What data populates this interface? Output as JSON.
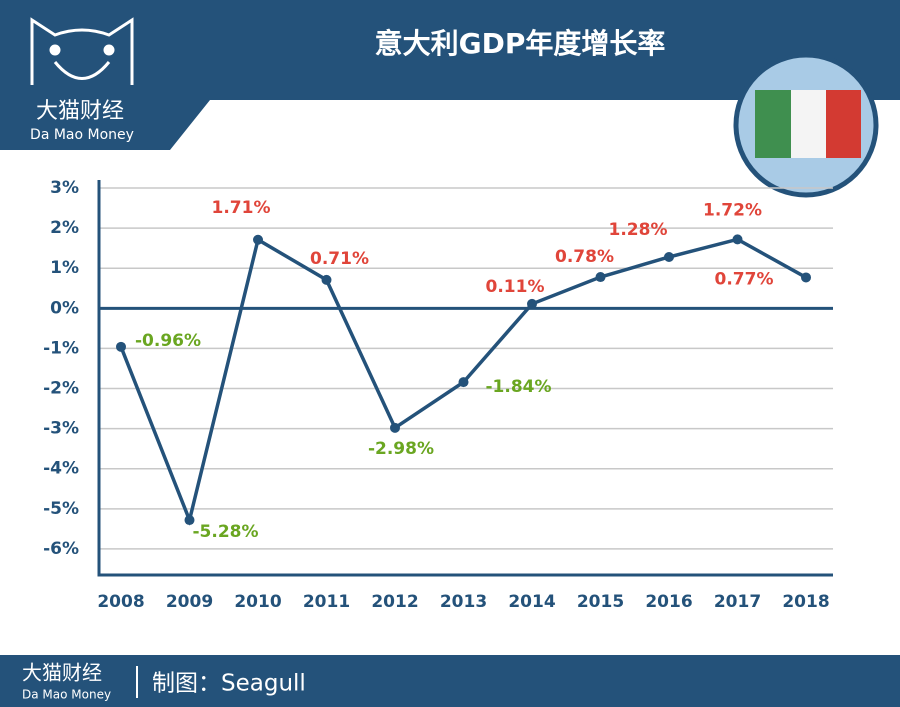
{
  "brand": {
    "name": "大猫财经",
    "name_en": "Da Mao Money"
  },
  "footer": {
    "credit": "制图：Seagull"
  },
  "chart_data": {
    "type": "line",
    "title": "意大利GDP年度增长率",
    "categories": [
      "2008",
      "2009",
      "2010",
      "2011",
      "2012",
      "2013",
      "2014",
      "2015",
      "2016",
      "2017",
      "2018"
    ],
    "values": [
      -0.96,
      -5.28,
      1.71,
      0.71,
      -2.98,
      -1.84,
      0.11,
      0.78,
      1.28,
      1.72,
      0.77
    ],
    "value_labels": [
      "-0.96%",
      "-5.28%",
      "1.71%",
      "0.71%",
      "-2.98%",
      "-1.84%",
      "0.11%",
      "0.78%",
      "1.28%",
      "1.72%",
      "0.77%"
    ],
    "color": "#24527a",
    "label_colors": {
      "positive": "#e0453a",
      "negative": "#6aa621"
    },
    "ylim": [
      -6.65,
      3.2
    ],
    "yticks": [
      {
        "value": 3,
        "label": "3%"
      },
      {
        "value": 2,
        "label": "2%"
      },
      {
        "value": 1,
        "label": "1%"
      },
      {
        "value": 0,
        "label": "0%"
      },
      {
        "value": -1,
        "label": "-1%"
      },
      {
        "value": -2,
        "label": "-2%"
      },
      {
        "value": -3,
        "label": "-3%"
      },
      {
        "value": -4,
        "label": "-4%"
      },
      {
        "value": -5,
        "label": "-5%"
      },
      {
        "value": -6,
        "label": "-6%"
      }
    ],
    "grid": true
  }
}
